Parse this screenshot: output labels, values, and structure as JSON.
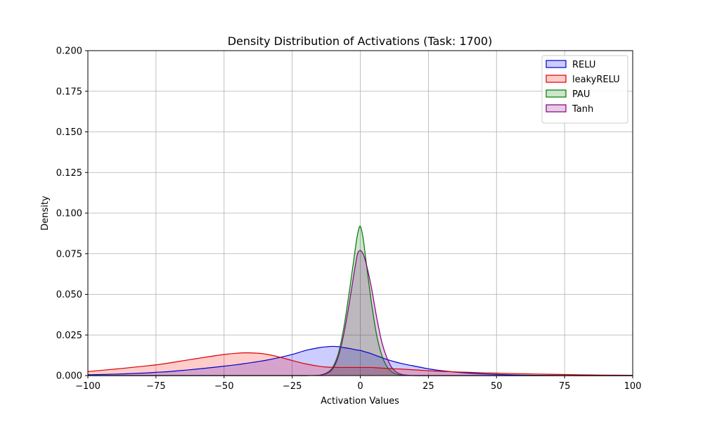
{
  "chart_data": {
    "type": "area",
    "title": "Density Distribution of Activations (Task: 1700)",
    "xlabel": "Activation Values",
    "ylabel": "Density",
    "xlim": [
      -100,
      100
    ],
    "ylim": [
      0,
      0.2
    ],
    "xticks": [
      -100,
      -75,
      -50,
      -25,
      0,
      25,
      50,
      75,
      100
    ],
    "yticks": [
      0.0,
      0.025,
      0.05,
      0.075,
      0.1,
      0.125,
      0.15,
      0.175,
      0.2
    ],
    "xtick_labels": [
      "−100",
      "−75",
      "−50",
      "−25",
      "0",
      "25",
      "50",
      "75",
      "100"
    ],
    "ytick_labels": [
      "0.000",
      "0.025",
      "0.050",
      "0.075",
      "0.100",
      "0.125",
      "0.150",
      "0.175",
      "0.200"
    ],
    "grid": true,
    "legend_position": "top-right",
    "x": [
      -100,
      -90,
      -80,
      -75,
      -70,
      -60,
      -50,
      -45,
      -42,
      -38,
      -35,
      -30,
      -25,
      -20,
      -15,
      -12,
      -10,
      -8,
      -6,
      -4,
      -2,
      -1,
      0,
      1,
      2,
      4,
      6,
      8,
      10,
      12,
      15,
      20,
      25,
      30,
      40,
      50,
      60,
      70,
      80,
      90,
      100
    ],
    "series": [
      {
        "name": "RELU",
        "color": "#0000cc",
        "fill": "#0000ff",
        "values": [
          0.0005,
          0.0009,
          0.0015,
          0.002,
          0.0025,
          0.004,
          0.0058,
          0.0068,
          0.0075,
          0.0085,
          0.0093,
          0.011,
          0.013,
          0.0155,
          0.0172,
          0.0178,
          0.018,
          0.0178,
          0.0172,
          0.0167,
          0.016,
          0.0157,
          0.0155,
          0.015,
          0.0145,
          0.0135,
          0.0122,
          0.011,
          0.0098,
          0.0088,
          0.0075,
          0.0058,
          0.0042,
          0.003,
          0.0015,
          0.0007,
          0.0003,
          0.0001,
          0.0,
          0.0,
          0.0
        ]
      },
      {
        "name": "leakyRELU",
        "color": "#dd0000",
        "fill": "#ff0000",
        "values": [
          0.0025,
          0.004,
          0.0057,
          0.0066,
          0.0078,
          0.0105,
          0.013,
          0.0138,
          0.014,
          0.0138,
          0.0133,
          0.0115,
          0.0093,
          0.0072,
          0.0057,
          0.0052,
          0.0051,
          0.005,
          0.005,
          0.005,
          0.005,
          0.005,
          0.005,
          0.005,
          0.005,
          0.005,
          0.0048,
          0.0046,
          0.0044,
          0.0042,
          0.004,
          0.0035,
          0.003,
          0.0026,
          0.002,
          0.0015,
          0.0011,
          0.0008,
          0.0005,
          0.0003,
          0.0002
        ]
      },
      {
        "name": "PAU",
        "color": "#007700",
        "fill": "#008000",
        "values": [
          0,
          0,
          0,
          0,
          0,
          0,
          0,
          0,
          0,
          0,
          0,
          0,
          0,
          0,
          0.0002,
          0.002,
          0.0055,
          0.014,
          0.03,
          0.052,
          0.076,
          0.087,
          0.092,
          0.085,
          0.072,
          0.046,
          0.025,
          0.012,
          0.005,
          0.0018,
          0.0003,
          0,
          0,
          0,
          0,
          0,
          0,
          0,
          0,
          0,
          0
        ]
      },
      {
        "name": "Tanh",
        "color": "#800080",
        "fill": "#800080",
        "values": [
          0,
          0,
          0,
          0,
          0,
          0,
          0,
          0,
          0,
          0,
          0,
          0,
          0,
          0,
          0.0002,
          0.0016,
          0.0045,
          0.012,
          0.026,
          0.045,
          0.066,
          0.075,
          0.077,
          0.075,
          0.07,
          0.055,
          0.036,
          0.02,
          0.01,
          0.004,
          0.0008,
          0,
          0,
          0,
          0,
          0,
          0,
          0,
          0,
          0,
          0
        ]
      }
    ]
  }
}
